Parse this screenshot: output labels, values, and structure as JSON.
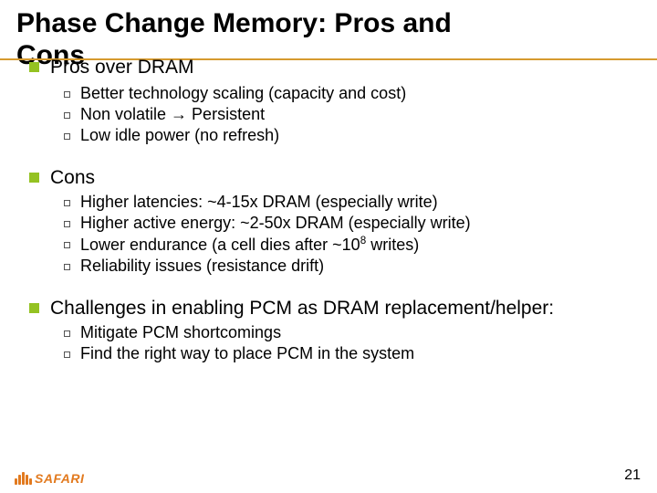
{
  "title": {
    "line1": "Phase Change Memory: Pros and",
    "line2": "Cons",
    "fontsize": 30,
    "color": "#000000",
    "rule_color": "#d69a2f"
  },
  "body": {
    "l1_color": "#000000",
    "l1_fontsize": 21,
    "l1_bullet_color": "#94c222",
    "l2_color": "#000000",
    "l2_fontsize": 18,
    "l2_bullet_border": "#555555",
    "sections": [
      {
        "heading": "Pros over DRAM",
        "items": [
          "Better technology scaling (capacity and cost)",
          "Non volatile → Persistent",
          "Low idle power (no refresh)"
        ]
      },
      {
        "heading": "Cons",
        "items": [
          "Higher latencies: ~4-15x DRAM (especially write)",
          "Higher active energy: ~2-50x DRAM (especially write)",
          "Lower endurance (a cell dies after ~10⁸ writes)",
          "Reliability issues (resistance drift)"
        ]
      },
      {
        "heading": "Challenges in enabling PCM as DRAM replacement/helper:",
        "items": [
          "Mitigate PCM shortcomings",
          "Find the right way to place PCM in the system"
        ]
      }
    ]
  },
  "pagenum": {
    "value": "21",
    "fontsize": 16,
    "color": "#000000"
  },
  "logo": {
    "text": "SAFARI",
    "color": "#e27a1f",
    "fontsize": 14
  }
}
